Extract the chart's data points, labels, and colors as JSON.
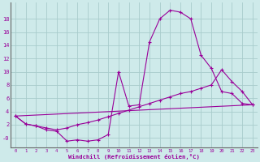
{
  "xlabel": "Windchill (Refroidissement éolien,°C)",
  "background_color": "#ceeaea",
  "grid_color": "#a8cccc",
  "line_color": "#990099",
  "xlim": [
    -0.5,
    23.5
  ],
  "ylim": [
    -1.5,
    20.5
  ],
  "xticks": [
    0,
    1,
    2,
    3,
    4,
    5,
    6,
    7,
    8,
    9,
    10,
    11,
    12,
    13,
    14,
    15,
    16,
    17,
    18,
    19,
    20,
    21,
    22,
    23
  ],
  "yticks": [
    0,
    2,
    4,
    6,
    8,
    10,
    12,
    14,
    16,
    18
  ],
  "ytick_labels": [
    "-0",
    "2",
    "4",
    "6",
    "8",
    "10",
    "12",
    "14",
    "16",
    "18"
  ],
  "line1_x": [
    0,
    1,
    2,
    3,
    4,
    5,
    6,
    7,
    8,
    9,
    10,
    11,
    12,
    13,
    14,
    15,
    16,
    17,
    18,
    19,
    20,
    21,
    22,
    23
  ],
  "line1_y": [
    3.3,
    2.1,
    1.8,
    1.2,
    1.0,
    -0.5,
    -0.3,
    -0.5,
    -0.3,
    0.5,
    10.0,
    4.8,
    5.0,
    14.5,
    18.0,
    19.3,
    19.0,
    18.0,
    12.5,
    10.5,
    7.0,
    6.7,
    5.2,
    5.0
  ],
  "line2_x": [
    0,
    1,
    2,
    3,
    4,
    5,
    6,
    7,
    8,
    9,
    10,
    11,
    12,
    13,
    14,
    15,
    16,
    17,
    18,
    19,
    20,
    21,
    22,
    23
  ],
  "line2_y": [
    3.3,
    2.1,
    1.8,
    1.5,
    1.2,
    1.5,
    2.0,
    2.3,
    2.7,
    3.2,
    3.7,
    4.2,
    4.7,
    5.2,
    5.7,
    6.2,
    6.7,
    7.0,
    7.5,
    8.0,
    10.3,
    8.5,
    7.0,
    5.0
  ],
  "line3_x": [
    0,
    23
  ],
  "line3_y": [
    3.3,
    5.0
  ]
}
